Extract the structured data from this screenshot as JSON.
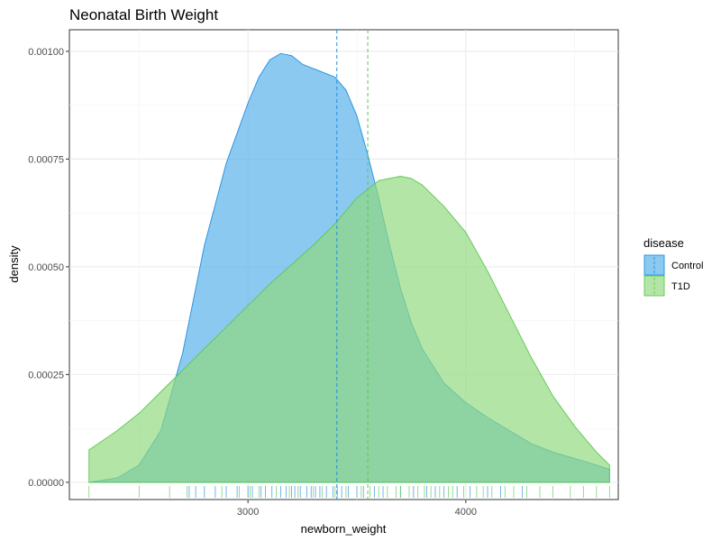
{
  "chart_data": {
    "type": "area",
    "title": "Neonatal Birth Weight",
    "xlabel": "newborn_weight",
    "ylabel": "density",
    "xlim": [
      2180,
      4700
    ],
    "ylim": [
      -4e-05,
      0.00105
    ],
    "x_ticks": [
      3000,
      4000
    ],
    "x_tick_labels": [
      "3000",
      "4000"
    ],
    "y_ticks": [
      0,
      0.00025,
      0.0005,
      0.00075,
      0.001
    ],
    "y_tick_labels": [
      "0.00000",
      "0.00025",
      "0.00050",
      "0.00075",
      "0.00100"
    ],
    "grid": true,
    "legend": {
      "title": "disease",
      "placement": "right",
      "entries": [
        "Control",
        "T1D"
      ]
    },
    "series": [
      {
        "name": "Control",
        "color": "#1f8fe0",
        "fill": "#56b0ea",
        "mean": 3408,
        "x": [
          2270,
          2400,
          2500,
          2600,
          2700,
          2800,
          2900,
          3000,
          3050,
          3100,
          3150,
          3200,
          3250,
          3300,
          3350,
          3400,
          3450,
          3500,
          3550,
          3600,
          3650,
          3700,
          3750,
          3800,
          3900,
          4000,
          4100,
          4200,
          4300,
          4400,
          4500,
          4600,
          4660
        ],
        "y": [
          0,
          1e-05,
          4e-05,
          0.00012,
          0.0003,
          0.00055,
          0.00074,
          0.00088,
          0.00094,
          0.00098,
          0.000995,
          0.00099,
          0.00097,
          0.00096,
          0.00095,
          0.00094,
          0.00091,
          0.00085,
          0.00076,
          0.00066,
          0.00055,
          0.00045,
          0.00037,
          0.00031,
          0.00023,
          0.000185,
          0.00015,
          0.00012,
          9e-05,
          7e-05,
          5.5e-05,
          4e-05,
          3e-05
        ]
      },
      {
        "name": "T1D",
        "color": "#5cc84e",
        "fill": "#8fd97e",
        "mean": 3550,
        "x": [
          2270,
          2400,
          2500,
          2600,
          2700,
          2800,
          2900,
          3000,
          3100,
          3200,
          3300,
          3400,
          3500,
          3600,
          3700,
          3750,
          3800,
          3900,
          4000,
          4100,
          4200,
          4300,
          4400,
          4500,
          4600,
          4660
        ],
        "y": [
          7.5e-05,
          0.00012,
          0.00016,
          0.00021,
          0.00026,
          0.00031,
          0.00036,
          0.00041,
          0.00046,
          0.000505,
          0.00055,
          0.0006,
          0.00066,
          0.0007,
          0.00071,
          0.000705,
          0.00069,
          0.00064,
          0.00058,
          0.00049,
          0.00039,
          0.00029,
          0.0002,
          0.00013,
          7e-05,
          4e-05
        ]
      }
    ],
    "rug": {
      "Control": [
        2730,
        2760,
        2800,
        2850,
        2900,
        2950,
        3000,
        3020,
        3060,
        3080,
        3110,
        3150,
        3175,
        3200,
        3215,
        3240,
        3270,
        3290,
        3310,
        3330,
        3360,
        3390,
        3410,
        3430,
        3460,
        3500,
        3530,
        3580,
        3620,
        3700,
        3760,
        3820,
        3860,
        3900,
        3960,
        4020,
        4100,
        4160,
        4260
      ],
      "T1D": [
        2270,
        2500,
        2640,
        2720,
        2880,
        2960,
        3010,
        3050,
        3130,
        3190,
        3230,
        3300,
        3340,
        3400,
        3450,
        3520,
        3560,
        3600,
        3640,
        3680,
        3700,
        3740,
        3780,
        3810,
        3840,
        3880,
        3920,
        3940,
        3990,
        4050,
        4080,
        4120,
        4180,
        4220,
        4280,
        4340,
        4400,
        4480,
        4540,
        4600,
        4660
      ]
    }
  }
}
